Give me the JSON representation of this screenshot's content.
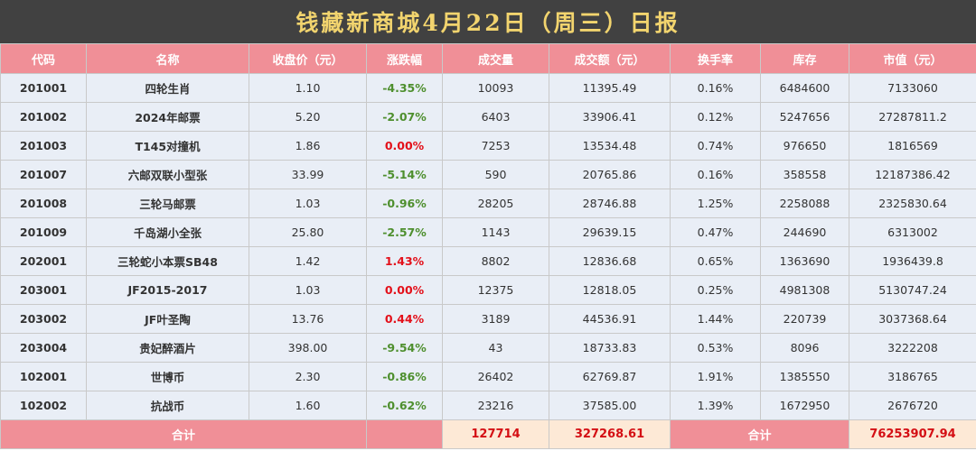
{
  "title": "钱藏新商城4月22日（周三）日报",
  "colors": {
    "title_bg": "#414141",
    "title_text": "#f2d46e",
    "header_bg": "#f08f97",
    "row_bg": "#e9eef6",
    "down": "#4e8f2e",
    "up": "#e3101a",
    "total_bg": "#fde9d6",
    "total_text": "#d40f14"
  },
  "headers": [
    "代码",
    "名称",
    "收盘价（元）",
    "涨跌幅",
    "成交量",
    "成交额（元）",
    "换手率",
    "库存",
    "市值（元）"
  ],
  "rows": [
    {
      "code": "201001",
      "name": "四轮生肖",
      "close": "1.10",
      "change": "-4.35%",
      "dir": "down",
      "volume": "10093",
      "turnover": "11395.49",
      "rate": "0.16%",
      "stock": "6484600",
      "cap": "7133060"
    },
    {
      "code": "201002",
      "name": "2024年邮票",
      "close": "5.20",
      "change": "-2.07%",
      "dir": "down",
      "volume": "6403",
      "turnover": "33906.41",
      "rate": "0.12%",
      "stock": "5247656",
      "cap": "27287811.2"
    },
    {
      "code": "201003",
      "name": "T145对撞机",
      "close": "1.86",
      "change": "0.00%",
      "dir": "up",
      "volume": "7253",
      "turnover": "13534.48",
      "rate": "0.74%",
      "stock": "976650",
      "cap": "1816569"
    },
    {
      "code": "201007",
      "name": "六邮双联小型张",
      "close": "33.99",
      "change": "-5.14%",
      "dir": "down",
      "volume": "590",
      "turnover": "20765.86",
      "rate": "0.16%",
      "stock": "358558",
      "cap": "12187386.42"
    },
    {
      "code": "201008",
      "name": "三轮马邮票",
      "close": "1.03",
      "change": "-0.96%",
      "dir": "down",
      "volume": "28205",
      "turnover": "28746.88",
      "rate": "1.25%",
      "stock": "2258088",
      "cap": "2325830.64"
    },
    {
      "code": "201009",
      "name": "千岛湖小全张",
      "close": "25.80",
      "change": "-2.57%",
      "dir": "down",
      "volume": "1143",
      "turnover": "29639.15",
      "rate": "0.47%",
      "stock": "244690",
      "cap": "6313002"
    },
    {
      "code": "202001",
      "name": "三轮蛇小本票SB48",
      "close": "1.42",
      "change": "1.43%",
      "dir": "up",
      "volume": "8802",
      "turnover": "12836.68",
      "rate": "0.65%",
      "stock": "1363690",
      "cap": "1936439.8"
    },
    {
      "code": "203001",
      "name": "JF2015-2017",
      "close": "1.03",
      "change": "0.00%",
      "dir": "up",
      "volume": "12375",
      "turnover": "12818.05",
      "rate": "0.25%",
      "stock": "4981308",
      "cap": "5130747.24"
    },
    {
      "code": "203002",
      "name": "JF叶圣陶",
      "close": "13.76",
      "change": "0.44%",
      "dir": "up",
      "volume": "3189",
      "turnover": "44536.91",
      "rate": "1.44%",
      "stock": "220739",
      "cap": "3037368.64"
    },
    {
      "code": "203004",
      "name": "贵妃醉酒片",
      "close": "398.00",
      "change": "-9.54%",
      "dir": "down",
      "volume": "43",
      "turnover": "18733.83",
      "rate": "0.53%",
      "stock": "8096",
      "cap": "3222208"
    },
    {
      "code": "102001",
      "name": "世博币",
      "close": "2.30",
      "change": "-0.86%",
      "dir": "down",
      "volume": "26402",
      "turnover": "62769.87",
      "rate": "1.91%",
      "stock": "1385550",
      "cap": "3186765"
    },
    {
      "code": "102002",
      "name": "抗战币",
      "close": "1.60",
      "change": "-0.62%",
      "dir": "down",
      "volume": "23216",
      "turnover": "37585.00",
      "rate": "1.39%",
      "stock": "1672950",
      "cap": "2676720"
    }
  ],
  "totals": {
    "label1": "合计",
    "volume": "127714",
    "turnover": "327268.61",
    "label2": "合计",
    "cap": "76253907.94"
  }
}
